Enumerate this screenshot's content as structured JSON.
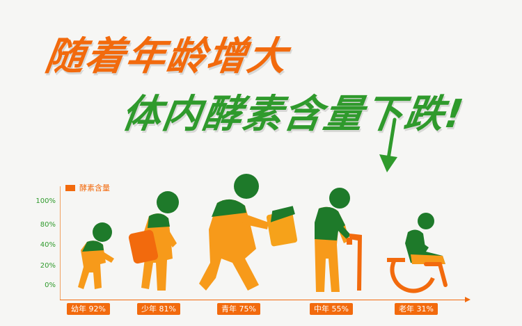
{
  "headline": {
    "line1": "随着年龄增大",
    "line2": "体内酵素含量下跌!"
  },
  "colors": {
    "orange": "#f26a0d",
    "green": "#2f9a2c",
    "dark_green": "#1e7a2a"
  },
  "chart_data": {
    "type": "bar",
    "title": "",
    "xlabel": "",
    "ylabel": "",
    "legend": {
      "position": "top-left",
      "entries": [
        "酵素含量"
      ]
    },
    "yticks": [
      "100%",
      "80%",
      "40%",
      "20%",
      "0%"
    ],
    "ylim": [
      0,
      100
    ],
    "categories": [
      "幼年 92%",
      "少年 81%",
      "青年 75%",
      "中年 55%",
      "老年 31%"
    ],
    "series": [
      {
        "name": "酵素含量",
        "values": [
          92,
          81,
          75,
          55,
          31
        ]
      }
    ]
  }
}
